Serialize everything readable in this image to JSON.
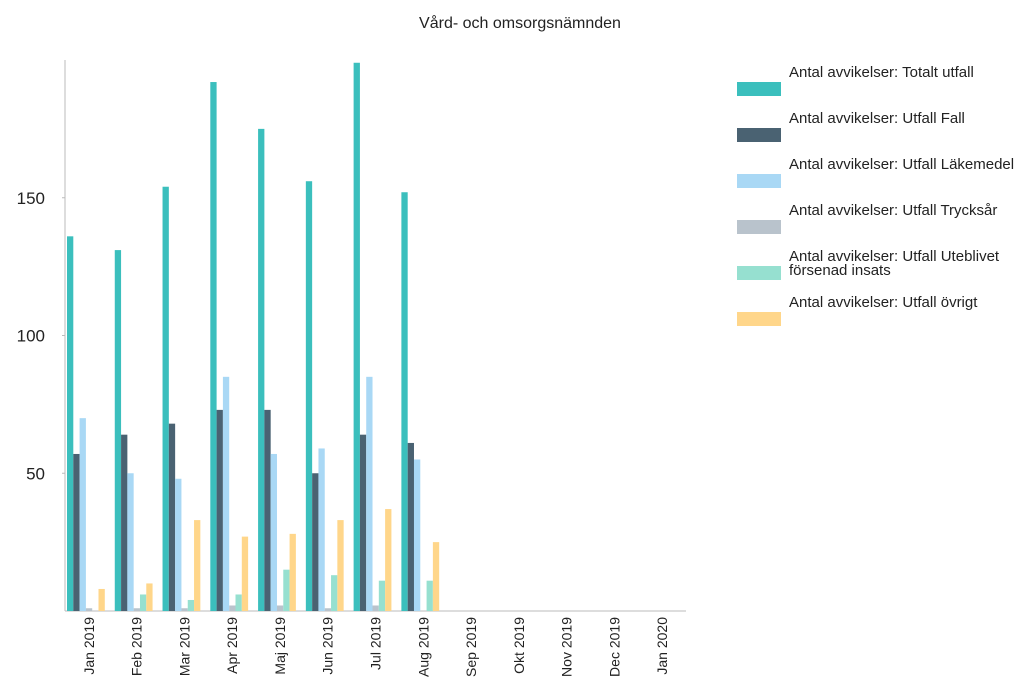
{
  "chart_data": {
    "type": "bar",
    "title": "Vård- och omsorgsnämnden",
    "categories": [
      "Jan 2019",
      "Feb 2019",
      "Mar 2019",
      "Apr 2019",
      "Maj 2019",
      "Jun 2019",
      "Jul 2019",
      "Aug 2019",
      "Sep 2019",
      "Okt 2019",
      "Nov 2019",
      "Dec 2019",
      "Jan 2020"
    ],
    "series": [
      {
        "name": "Antal avvikelser: Totalt utfall",
        "color": "#3bbfbd",
        "values": [
          136,
          131,
          154,
          192,
          175,
          156,
          199,
          152,
          null,
          null,
          null,
          null,
          null
        ]
      },
      {
        "name": "Antal avvikelser: Utfall Fall",
        "color": "#4a6272",
        "values": [
          57,
          64,
          68,
          73,
          73,
          50,
          64,
          61,
          null,
          null,
          null,
          null,
          null
        ]
      },
      {
        "name": "Antal avvikelser: Utfall Läkemedel",
        "color": "#a9d8f5",
        "values": [
          70,
          50,
          48,
          85,
          57,
          59,
          85,
          55,
          null,
          null,
          null,
          null,
          null
        ]
      },
      {
        "name": "Antal avvikelser: Utfall Trycksår",
        "color": "#b9c3cc",
        "values": [
          1,
          1,
          1,
          2,
          2,
          1,
          2,
          null,
          null,
          null,
          null,
          null,
          null
        ]
      },
      {
        "name": "Antal avvikelser: Utfall Uteblivet försenad insats",
        "color": "#96e0d0",
        "values": [
          null,
          6,
          4,
          6,
          15,
          13,
          11,
          11,
          null,
          null,
          null,
          null,
          null
        ]
      },
      {
        "name": "Antal avvikelser: Utfall övrigt",
        "color": "#ffd68a",
        "values": [
          8,
          10,
          33,
          27,
          28,
          33,
          37,
          25,
          null,
          null,
          null,
          null,
          null
        ]
      }
    ],
    "ylim": [
      0,
      200
    ],
    "yticks": [
      50,
      100,
      150
    ],
    "grid": false
  }
}
